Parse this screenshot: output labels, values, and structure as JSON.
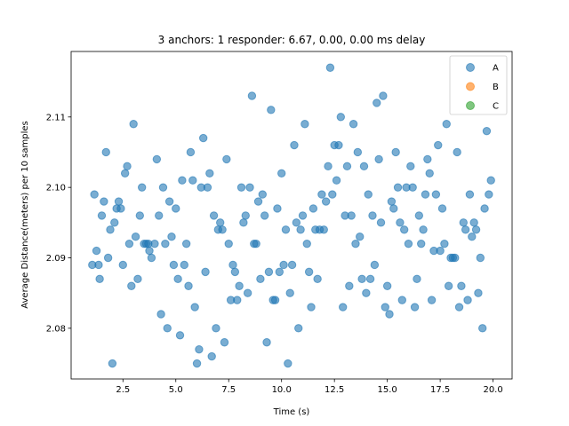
{
  "chart_data": {
    "type": "scatter",
    "title": "3 anchors: 1 responder: 6.67, 0.00, 0.00 ms delay",
    "xlabel": "Time (s)",
    "ylabel": "Average Distance(meters) per 10 samples",
    "xlim": [
      0.05,
      20.9
    ],
    "ylim": [
      2.0728,
      2.1193
    ],
    "xticks": [
      2.5,
      5.0,
      7.5,
      10.0,
      12.5,
      15.0,
      17.5,
      20.0
    ],
    "xtick_labels": [
      "2.5",
      "5.0",
      "7.5",
      "10.0",
      "12.5",
      "15.0",
      "17.5",
      "20.0"
    ],
    "yticks": [
      2.08,
      2.09,
      2.1,
      2.11
    ],
    "ytick_labels": [
      "2.08",
      "2.09",
      "2.10",
      "2.11"
    ],
    "grid": false,
    "legend_position": "top-right",
    "series": [
      {
        "name": "A",
        "color": "#1f77b4",
        "points": [
          [
            1.05,
            2.089
          ],
          [
            1.15,
            2.099
          ],
          [
            1.25,
            2.091
          ],
          [
            1.35,
            2.089
          ],
          [
            1.4,
            2.087
          ],
          [
            1.5,
            2.096
          ],
          [
            1.6,
            2.098
          ],
          [
            1.7,
            2.105
          ],
          [
            1.8,
            2.09
          ],
          [
            1.9,
            2.094
          ],
          [
            2.0,
            2.075
          ],
          [
            2.1,
            2.095
          ],
          [
            2.2,
            2.097
          ],
          [
            2.3,
            2.098
          ],
          [
            2.4,
            2.097
          ],
          [
            2.5,
            2.089
          ],
          [
            2.6,
            2.102
          ],
          [
            2.7,
            2.103
          ],
          [
            2.8,
            2.092
          ],
          [
            2.9,
            2.086
          ],
          [
            3.0,
            2.109
          ],
          [
            3.1,
            2.093
          ],
          [
            3.2,
            2.087
          ],
          [
            3.3,
            2.096
          ],
          [
            3.4,
            2.1
          ],
          [
            3.5,
            2.092
          ],
          [
            3.6,
            2.092
          ],
          [
            3.7,
            2.092
          ],
          [
            3.75,
            2.091
          ],
          [
            3.85,
            2.09
          ],
          [
            4.0,
            2.092
          ],
          [
            4.1,
            2.104
          ],
          [
            4.2,
            2.096
          ],
          [
            4.3,
            2.082
          ],
          [
            4.4,
            2.1
          ],
          [
            4.5,
            2.092
          ],
          [
            4.6,
            2.08
          ],
          [
            4.7,
            2.098
          ],
          [
            4.8,
            2.093
          ],
          [
            4.9,
            2.089
          ],
          [
            5.0,
            2.097
          ],
          [
            5.1,
            2.087
          ],
          [
            5.2,
            2.079
          ],
          [
            5.3,
            2.101
          ],
          [
            5.4,
            2.089
          ],
          [
            5.5,
            2.092
          ],
          [
            5.6,
            2.086
          ],
          [
            5.7,
            2.105
          ],
          [
            5.8,
            2.101
          ],
          [
            5.9,
            2.083
          ],
          [
            6.0,
            2.075
          ],
          [
            6.1,
            2.077
          ],
          [
            6.2,
            2.1
          ],
          [
            6.3,
            2.107
          ],
          [
            6.4,
            2.088
          ],
          [
            6.5,
            2.1
          ],
          [
            6.6,
            2.102
          ],
          [
            6.7,
            2.076
          ],
          [
            6.8,
            2.096
          ],
          [
            6.9,
            2.08
          ],
          [
            7.0,
            2.094
          ],
          [
            7.1,
            2.095
          ],
          [
            7.2,
            2.094
          ],
          [
            7.3,
            2.078
          ],
          [
            7.4,
            2.104
          ],
          [
            7.5,
            2.092
          ],
          [
            7.6,
            2.084
          ],
          [
            7.7,
            2.089
          ],
          [
            7.8,
            2.088
          ],
          [
            7.9,
            2.084
          ],
          [
            8.0,
            2.086
          ],
          [
            8.1,
            2.1
          ],
          [
            8.2,
            2.095
          ],
          [
            8.3,
            2.096
          ],
          [
            8.4,
            2.085
          ],
          [
            8.5,
            2.1
          ],
          [
            8.6,
            2.113
          ],
          [
            8.7,
            2.092
          ],
          [
            8.8,
            2.092
          ],
          [
            8.9,
            2.098
          ],
          [
            9.0,
            2.087
          ],
          [
            9.1,
            2.099
          ],
          [
            9.2,
            2.096
          ],
          [
            9.3,
            2.078
          ],
          [
            9.4,
            2.088
          ],
          [
            9.5,
            2.111
          ],
          [
            9.6,
            2.084
          ],
          [
            9.7,
            2.084
          ],
          [
            9.8,
            2.097
          ],
          [
            9.9,
            2.088
          ],
          [
            10.0,
            2.102
          ],
          [
            10.1,
            2.089
          ],
          [
            10.2,
            2.094
          ],
          [
            10.3,
            2.075
          ],
          [
            10.4,
            2.085
          ],
          [
            10.5,
            2.089
          ],
          [
            10.6,
            2.106
          ],
          [
            10.7,
            2.095
          ],
          [
            10.8,
            2.08
          ],
          [
            10.9,
            2.094
          ],
          [
            11.0,
            2.096
          ],
          [
            11.1,
            2.109
          ],
          [
            11.2,
            2.092
          ],
          [
            11.3,
            2.088
          ],
          [
            11.4,
            2.083
          ],
          [
            11.5,
            2.097
          ],
          [
            11.6,
            2.094
          ],
          [
            11.7,
            2.087
          ],
          [
            11.8,
            2.094
          ],
          [
            11.9,
            2.099
          ],
          [
            12.0,
            2.094
          ],
          [
            12.1,
            2.098
          ],
          [
            12.2,
            2.103
          ],
          [
            12.3,
            2.117
          ],
          [
            12.4,
            2.099
          ],
          [
            12.5,
            2.106
          ],
          [
            12.6,
            2.101
          ],
          [
            12.7,
            2.106
          ],
          [
            12.8,
            2.11
          ],
          [
            12.9,
            2.083
          ],
          [
            13.0,
            2.096
          ],
          [
            13.1,
            2.103
          ],
          [
            13.2,
            2.086
          ],
          [
            13.3,
            2.096
          ],
          [
            13.4,
            2.109
          ],
          [
            13.5,
            2.092
          ],
          [
            13.6,
            2.105
          ],
          [
            13.7,
            2.093
          ],
          [
            13.8,
            2.087
          ],
          [
            13.9,
            2.103
          ],
          [
            14.0,
            2.085
          ],
          [
            14.1,
            2.099
          ],
          [
            14.2,
            2.087
          ],
          [
            14.3,
            2.096
          ],
          [
            14.4,
            2.089
          ],
          [
            14.5,
            2.112
          ],
          [
            14.6,
            2.104
          ],
          [
            14.7,
            2.095
          ],
          [
            14.8,
            2.113
          ],
          [
            14.9,
            2.083
          ],
          [
            15.0,
            2.086
          ],
          [
            15.1,
            2.082
          ],
          [
            15.2,
            2.098
          ],
          [
            15.3,
            2.097
          ],
          [
            15.4,
            2.105
          ],
          [
            15.5,
            2.1
          ],
          [
            15.6,
            2.095
          ],
          [
            15.7,
            2.084
          ],
          [
            15.8,
            2.094
          ],
          [
            15.9,
            2.1
          ],
          [
            16.0,
            2.092
          ],
          [
            16.1,
            2.103
          ],
          [
            16.2,
            2.1
          ],
          [
            16.3,
            2.083
          ],
          [
            16.4,
            2.087
          ],
          [
            16.5,
            2.096
          ],
          [
            16.6,
            2.092
          ],
          [
            16.7,
            2.094
          ],
          [
            16.8,
            2.099
          ],
          [
            16.9,
            2.104
          ],
          [
            17.0,
            2.102
          ],
          [
            17.1,
            2.084
          ],
          [
            17.2,
            2.091
          ],
          [
            17.3,
            2.099
          ],
          [
            17.4,
            2.106
          ],
          [
            17.5,
            2.091
          ],
          [
            17.6,
            2.097
          ],
          [
            17.7,
            2.092
          ],
          [
            17.8,
            2.109
          ],
          [
            17.9,
            2.086
          ],
          [
            18.0,
            2.09
          ],
          [
            18.1,
            2.09
          ],
          [
            18.2,
            2.09
          ],
          [
            18.3,
            2.105
          ],
          [
            18.4,
            2.083
          ],
          [
            18.5,
            2.086
          ],
          [
            18.6,
            2.095
          ],
          [
            18.7,
            2.094
          ],
          [
            18.8,
            2.084
          ],
          [
            18.9,
            2.099
          ],
          [
            19.0,
            2.093
          ],
          [
            19.1,
            2.095
          ],
          [
            19.2,
            2.094
          ],
          [
            19.3,
            2.085
          ],
          [
            19.4,
            2.09
          ],
          [
            19.5,
            2.08
          ],
          [
            19.6,
            2.097
          ],
          [
            19.7,
            2.108
          ],
          [
            19.8,
            2.099
          ],
          [
            19.9,
            2.101
          ]
        ]
      },
      {
        "name": "B",
        "color": "#ff7f0e",
        "points": []
      },
      {
        "name": "C",
        "color": "#2ca02c",
        "points": []
      }
    ]
  }
}
